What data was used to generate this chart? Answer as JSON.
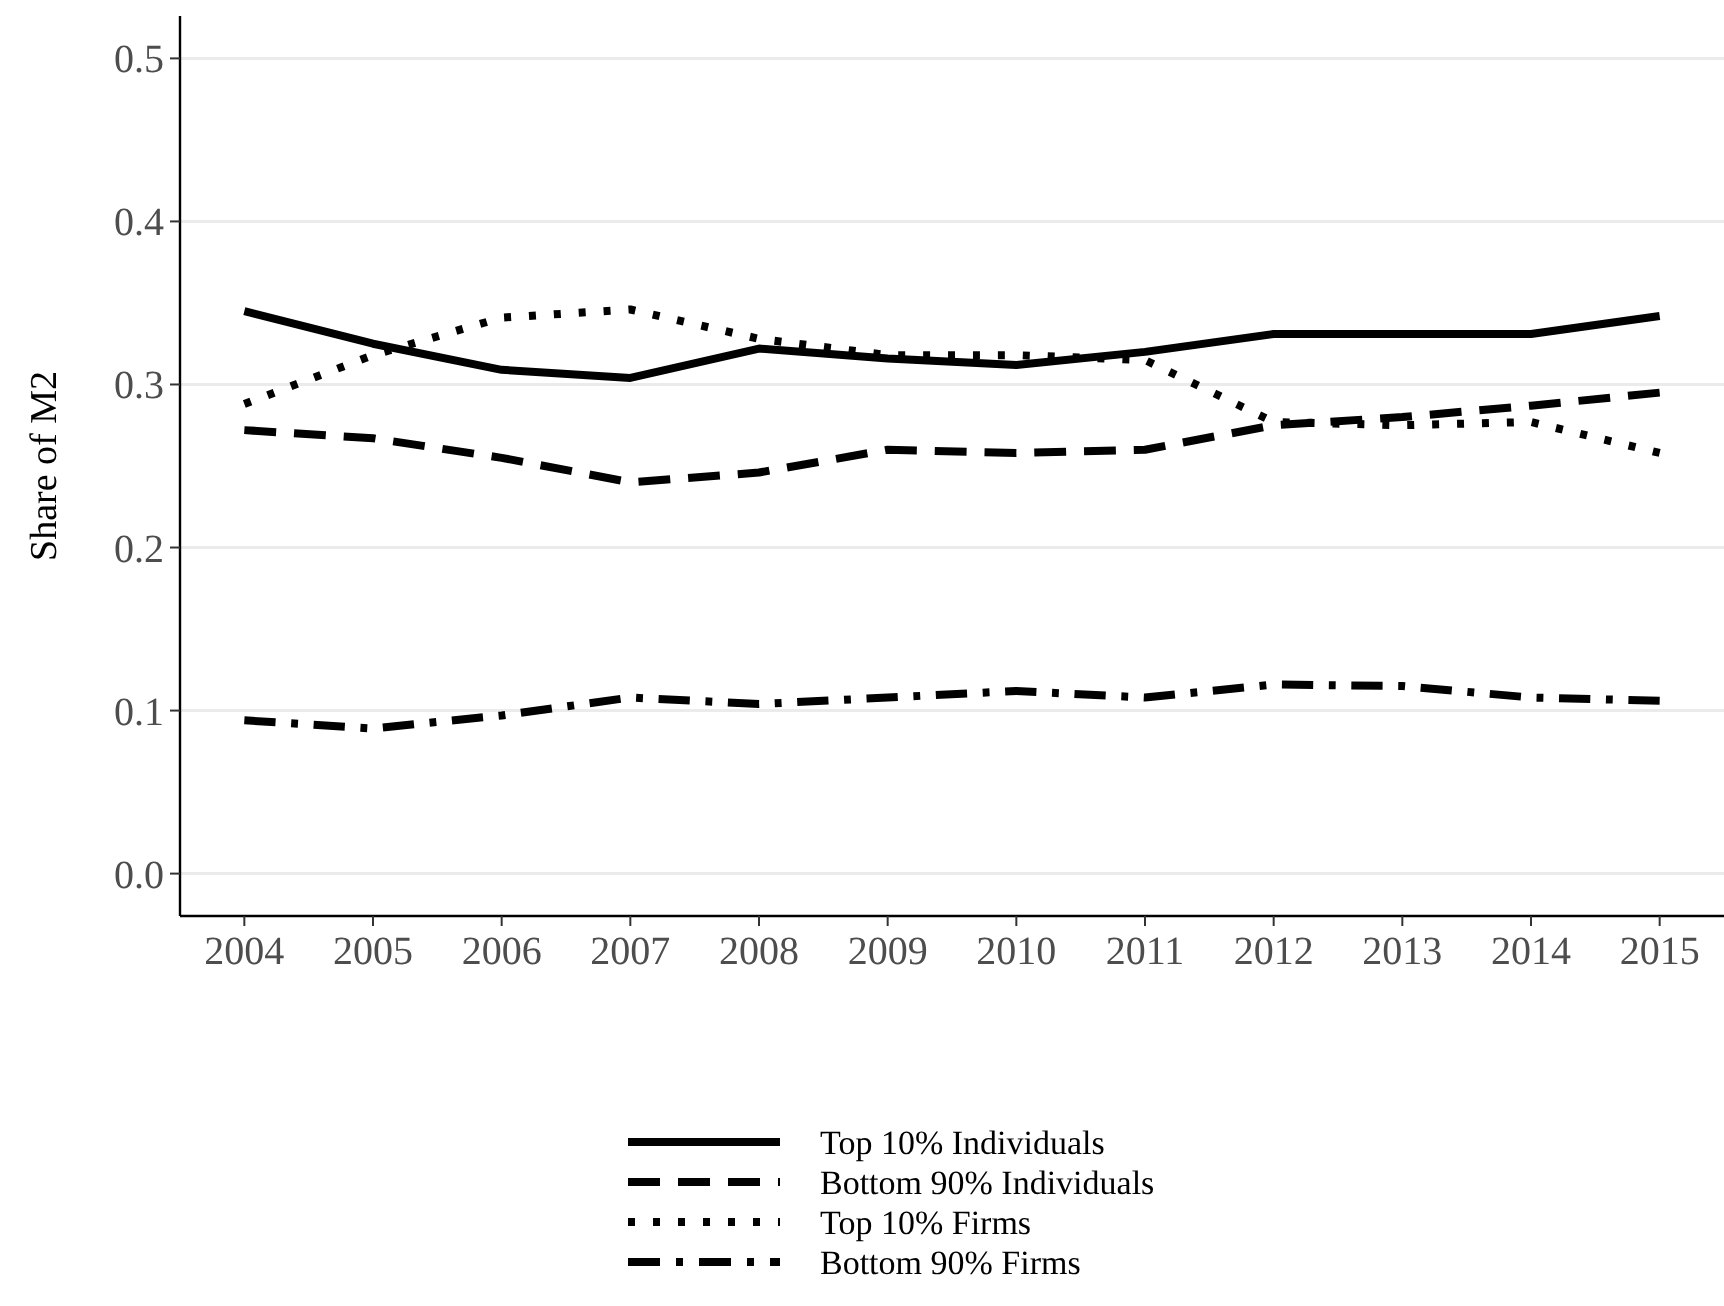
{
  "chart_data": {
    "type": "line",
    "ylabel": "Share of M2",
    "categories": [
      "2004",
      "2005",
      "2006",
      "2007",
      "2008",
      "2009",
      "2010",
      "2011",
      "2012",
      "2013",
      "2014",
      "2015"
    ],
    "ylim": [
      -0.026,
      0.526
    ],
    "yticks": [
      {
        "value": 0,
        "label": "0.0"
      },
      {
        "value": 0.1,
        "label": "0.1"
      },
      {
        "value": 0.2,
        "label": "0.2"
      },
      {
        "value": 0.3,
        "label": "0.3"
      },
      {
        "value": 0.4,
        "label": "0.4"
      },
      {
        "value": 0.5,
        "label": "0.5"
      }
    ],
    "grid": "y",
    "legend": "bottom",
    "series": [
      {
        "name": "Top 10% Individuals",
        "color": "#000000",
        "line_style": "solid",
        "values": [
          0.345,
          0.325,
          0.309,
          0.304,
          0.322,
          0.316,
          0.312,
          0.32,
          0.331,
          0.331,
          0.331,
          0.342
        ]
      },
      {
        "name": "Bottom 90% Individuals",
        "color": "#000000",
        "line_style": "dashed",
        "values": [
          0.272,
          0.267,
          0.255,
          0.24,
          0.246,
          0.26,
          0.258,
          0.26,
          0.275,
          0.28,
          0.287,
          0.295
        ]
      },
      {
        "name": "Top 10% Firms",
        "color": "#000000",
        "line_style": "dotted",
        "values": [
          0.288,
          0.318,
          0.341,
          0.346,
          0.328,
          0.318,
          0.318,
          0.315,
          0.277,
          0.275,
          0.277,
          0.258
        ]
      },
      {
        "name": "Bottom 90% Firms",
        "color": "#000000",
        "line_style": "dashdot",
        "values": [
          0.094,
          0.089,
          0.097,
          0.108,
          0.104,
          0.108,
          0.112,
          0.108,
          0.116,
          0.115,
          0.108,
          0.106
        ]
      }
    ]
  }
}
